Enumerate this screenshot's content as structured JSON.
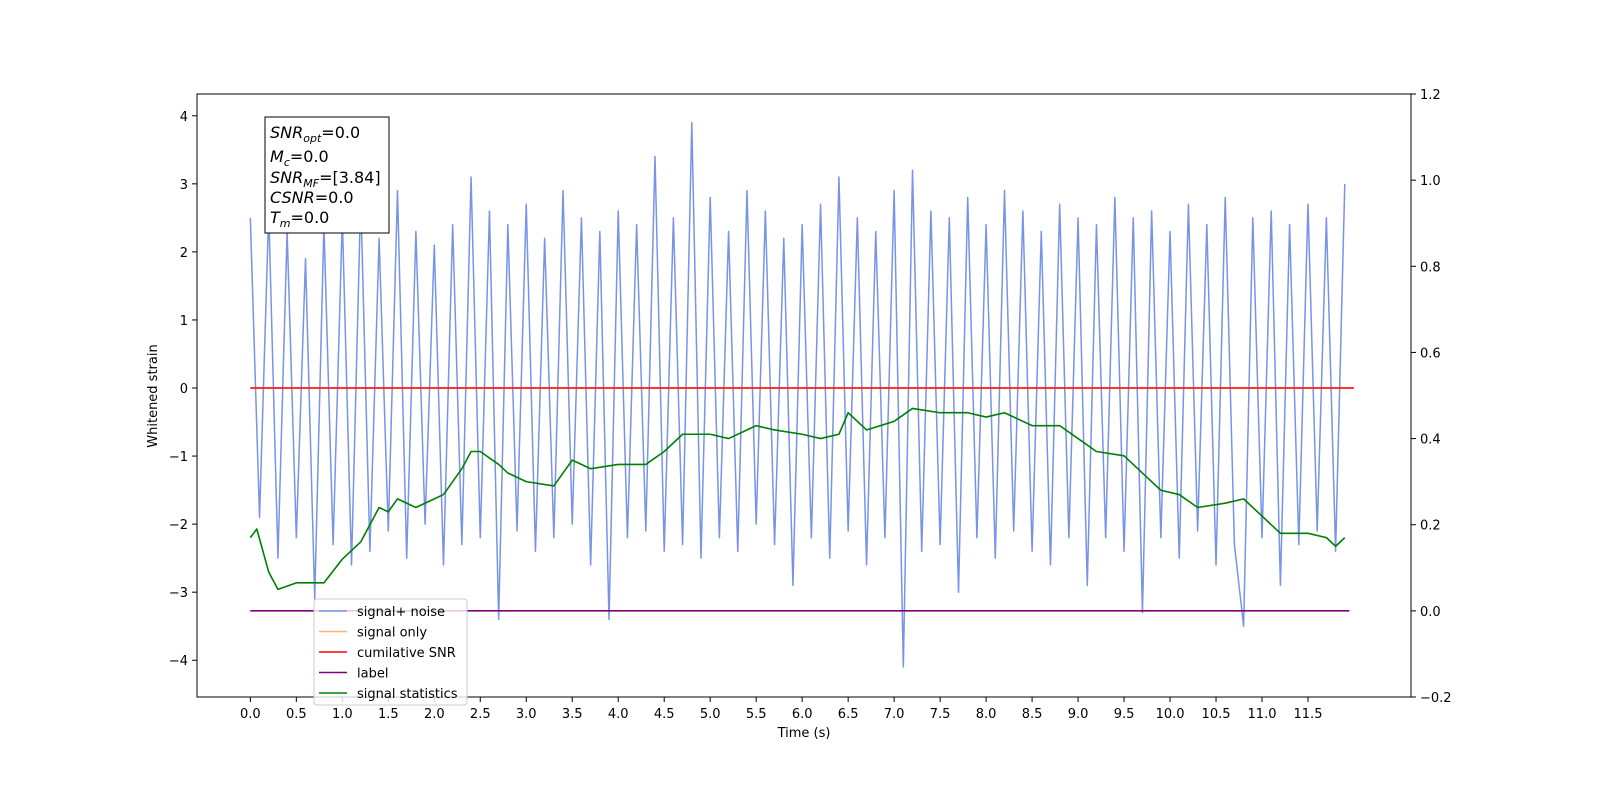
{
  "chart_data": {
    "type": "line",
    "xlabel": "Time (s)",
    "ylabel": "Whitened strain",
    "xlim": [
      -0.58,
      12.62
    ],
    "ylim": [
      -4.54,
      4.32
    ],
    "y2lim": [
      -0.2,
      1.2
    ],
    "xticks": [
      {
        "value": 0,
        "label": "0.0"
      },
      {
        "value": 0.5,
        "label": "0.5"
      },
      {
        "value": 1,
        "label": "1.0"
      },
      {
        "value": 1.5,
        "label": "1.5"
      },
      {
        "value": 2,
        "label": "2.0"
      },
      {
        "value": 2.5,
        "label": "2.5"
      },
      {
        "value": 3,
        "label": "3.0"
      },
      {
        "value": 3.5,
        "label": "3.5"
      },
      {
        "value": 4,
        "label": "4.0"
      },
      {
        "value": 4.5,
        "label": "4.5"
      },
      {
        "value": 5,
        "label": "5.0"
      },
      {
        "value": 5.5,
        "label": "5.5"
      },
      {
        "value": 6,
        "label": "6.0"
      },
      {
        "value": 6.5,
        "label": "6.5"
      },
      {
        "value": 7,
        "label": "7.0"
      },
      {
        "value": 7.5,
        "label": "7.5"
      },
      {
        "value": 8,
        "label": "8.0"
      },
      {
        "value": 8.5,
        "label": "8.5"
      },
      {
        "value": 9,
        "label": "9.0"
      },
      {
        "value": 9.5,
        "label": "9.5"
      },
      {
        "value": 10,
        "label": "10.0"
      },
      {
        "value": 10.5,
        "label": "10.5"
      },
      {
        "value": 11,
        "label": "11.0"
      },
      {
        "value": 11.5,
        "label": "11.5"
      }
    ],
    "yticks": [
      {
        "value": -4,
        "label": "−4"
      },
      {
        "value": -3,
        "label": "−3"
      },
      {
        "value": -2,
        "label": "−2"
      },
      {
        "value": -1,
        "label": "−1"
      },
      0,
      1,
      2,
      3,
      4
    ],
    "y2ticks": [
      {
        "value": -0.2,
        "label": "−0.2"
      },
      {
        "value": 0,
        "label": "0.0"
      },
      0.2,
      0.4,
      0.6,
      0.8,
      {
        "value": 1,
        "label": "1.0"
      },
      1.2
    ],
    "annotation": [
      [
        "SNR",
        "opt",
        "=0.0"
      ],
      [
        "M",
        "c",
        "=0.0"
      ],
      [
        "SNR",
        "MF",
        "=[3.84]"
      ],
      [
        "CSNR",
        "",
        "=0.0"
      ],
      [
        "T",
        "m",
        "=0.0"
      ]
    ],
    "legend": "lower left",
    "series": [
      {
        "name": "signal+ noise",
        "color": "#7893e8",
        "x": [
          0,
          0.1,
          0.2,
          0.3,
          0.4,
          0.5,
          0.6,
          0.7,
          0.8,
          0.9,
          1,
          1.1,
          1.2,
          1.3,
          1.4,
          1.5,
          1.6,
          1.7,
          1.8,
          1.9,
          2,
          2.1,
          2.2,
          2.3,
          2.4,
          2.5,
          2.6,
          2.7,
          2.8,
          2.9,
          3,
          3.1,
          3.2,
          3.3,
          3.4,
          3.5,
          3.6,
          3.7,
          3.8,
          3.9,
          4,
          4.1,
          4.2,
          4.3,
          4.4,
          4.5,
          4.6,
          4.7,
          4.8,
          4.9,
          5,
          5.1,
          5.2,
          5.3,
          5.4,
          5.5,
          5.6,
          5.7,
          5.8,
          5.9,
          6,
          6.1,
          6.2,
          6.3,
          6.4,
          6.5,
          6.6,
          6.7,
          6.8,
          6.9,
          7,
          7.1,
          7.2,
          7.3,
          7.4,
          7.5,
          7.6,
          7.7,
          7.8,
          7.9,
          8,
          8.1,
          8.2,
          8.3,
          8.4,
          8.5,
          8.6,
          8.7,
          8.8,
          8.9,
          9,
          9.1,
          9.2,
          9.3,
          9.4,
          9.5,
          9.6,
          9.7,
          9.8,
          9.9,
          10,
          10.1,
          10.2,
          10.3,
          10.4,
          10.5,
          10.6,
          10.7,
          10.8,
          10.9,
          11,
          11.1,
          11.2,
          11.3,
          11.4,
          11.5,
          11.6,
          11.7,
          11.8,
          11.9
        ],
        "values": [
          2.5,
          -1.9,
          2.6,
          -2.5,
          2.3,
          -2.2,
          1.9,
          -3.1,
          2.4,
          -2.3,
          2.5,
          -2.6,
          2.8,
          -2.4,
          2.2,
          -2.1,
          2.9,
          -2.5,
          2.3,
          -2.0,
          2.1,
          -2.6,
          2.4,
          -2.3,
          3.1,
          -2.2,
          2.6,
          -3.4,
          2.4,
          -2.1,
          2.7,
          -2.4,
          2.2,
          -2.2,
          2.9,
          -2.0,
          2.5,
          -2.6,
          2.3,
          -3.4,
          2.6,
          -2.2,
          2.4,
          -2.1,
          3.4,
          -2.4,
          2.5,
          -2.3,
          3.9,
          -2.5,
          2.8,
          -2.2,
          2.3,
          -2.4,
          2.9,
          -2.0,
          2.6,
          -2.3,
          2.2,
          -2.9,
          2.4,
          -2.2,
          2.7,
          -2.5,
          3.1,
          -2.1,
          2.5,
          -2.6,
          2.3,
          -2.2,
          2.9,
          -4.1,
          3.2,
          -2.4,
          2.6,
          -2.3,
          2.5,
          -3.0,
          2.8,
          -2.2,
          2.4,
          -2.5,
          2.9,
          -2.1,
          2.6,
          -2.4,
          2.3,
          -2.6,
          2.7,
          -2.2,
          2.5,
          -2.9,
          2.4,
          -2.2,
          2.8,
          -2.4,
          2.5,
          -3.3,
          2.6,
          -2.2,
          2.3,
          -2.5,
          2.7,
          -2.1,
          2.4,
          -2.6,
          2.8,
          -2.3,
          -3.5,
          2.5,
          -2.2,
          2.6,
          -2.9,
          2.4,
          -2.3,
          2.7,
          -2.1,
          2.5,
          -2.4,
          3.0
        ]
      },
      {
        "name": "signal only",
        "color": "#f8b866",
        "x": [
          0,
          12
        ],
        "values": [
          0,
          0
        ]
      },
      {
        "name": "cumilative SNR",
        "color": "#ff0000",
        "x": [
          0,
          12
        ],
        "values": [
          0,
          0
        ]
      },
      {
        "name": "label",
        "color": "#800080",
        "axis": "y2",
        "x": [
          0,
          11.95
        ],
        "values": [
          0,
          0
        ]
      },
      {
        "name": "signal statistics",
        "color": "#008000",
        "axis": "y2",
        "x": [
          0,
          0.07,
          0.2,
          0.3,
          0.5,
          0.6,
          0.8,
          1,
          1.2,
          1.4,
          1.5,
          1.6,
          1.8,
          2,
          2.1,
          2.3,
          2.4,
          2.5,
          2.7,
          2.8,
          3,
          3.3,
          3.5,
          3.7,
          4,
          4.3,
          4.5,
          4.7,
          5,
          5.2,
          5.5,
          5.7,
          6,
          6.2,
          6.4,
          6.5,
          6.7,
          7,
          7.2,
          7.5,
          7.8,
          8,
          8.2,
          8.5,
          8.8,
          9,
          9.2,
          9.5,
          9.7,
          9.9,
          10.1,
          10.3,
          10.6,
          10.8,
          11,
          11.2,
          11.5,
          11.7,
          11.8,
          11.9
        ],
        "values": [
          0.17,
          0.19,
          0.09,
          0.05,
          0.065,
          0.065,
          0.065,
          0.12,
          0.16,
          0.24,
          0.23,
          0.26,
          0.24,
          0.26,
          0.27,
          0.33,
          0.37,
          0.37,
          0.34,
          0.32,
          0.3,
          0.29,
          0.35,
          0.33,
          0.34,
          0.34,
          0.37,
          0.41,
          0.41,
          0.4,
          0.43,
          0.42,
          0.41,
          0.4,
          0.41,
          0.46,
          0.42,
          0.44,
          0.47,
          0.46,
          0.46,
          0.45,
          0.46,
          0.43,
          0.43,
          0.4,
          0.37,
          0.36,
          0.32,
          0.28,
          0.27,
          0.24,
          0.25,
          0.26,
          0.22,
          0.18,
          0.18,
          0.17,
          0.15,
          0.17
        ]
      }
    ]
  }
}
